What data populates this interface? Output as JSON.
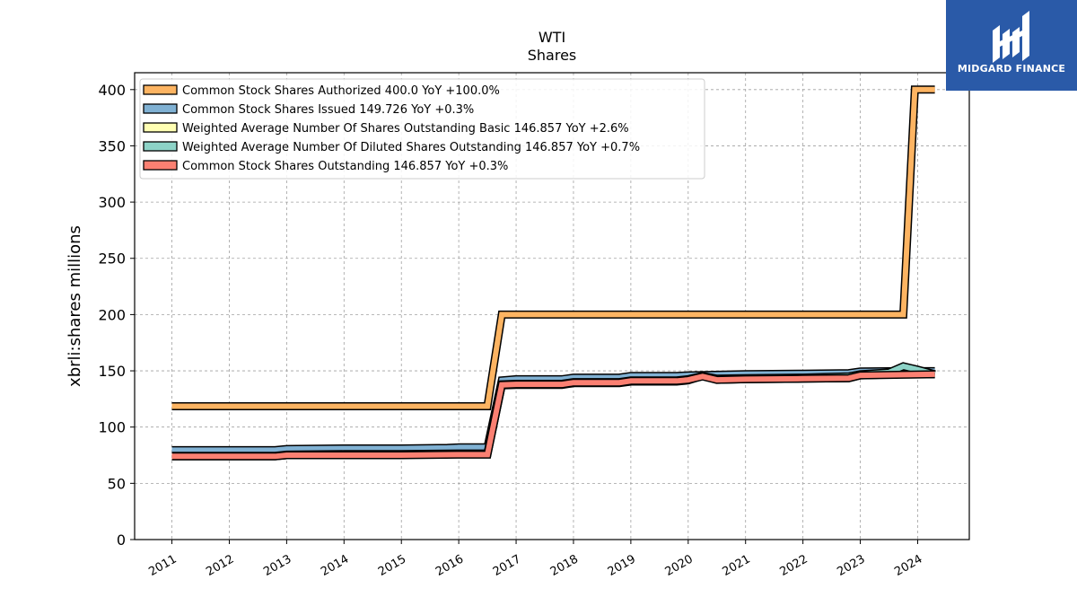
{
  "logo": {
    "text": "MIDGARD FINANCE",
    "bg": "#2a5aa8"
  },
  "chart_data": {
    "type": "line",
    "title": "WTI",
    "subtitle": "Shares",
    "ylabel": "xbrli:shares millions",
    "xlabel": "",
    "ylim": [
      0,
      415
    ],
    "xlim": [
      2010.35,
      2024.9
    ],
    "grid": true,
    "legend_position": "upper-left",
    "y_ticks": [
      0,
      50,
      100,
      150,
      200,
      250,
      300,
      350,
      400
    ],
    "x_ticks": [
      "2011",
      "2012",
      "2013",
      "2014",
      "2015",
      "2016",
      "2017",
      "2018",
      "2019",
      "2020",
      "2021",
      "2022",
      "2023",
      "2024"
    ],
    "series": [
      {
        "name": "Common Stock Shares Authorized",
        "legend": "Common Stock Shares Authorized  400.0 YoY +100.0%",
        "color": "#fdb462",
        "x": [
          2011.0,
          2016.5,
          2016.75,
          2023.75,
          2023.95,
          2024.3
        ],
        "y": [
          118.5,
          118.5,
          200.0,
          200.0,
          400.0,
          400.0
        ]
      },
      {
        "name": "Common Stock Shares Issued",
        "legend": "Common Stock Shares Issued  149.726 YoY +0.3%",
        "color": "#80b1d3",
        "x": [
          2011.0,
          2012.0,
          2012.8,
          2013.0,
          2014.0,
          2015.0,
          2015.8,
          2016.0,
          2016.5,
          2016.75,
          2017.0,
          2017.8,
          2018.0,
          2018.8,
          2019.0,
          2019.8,
          2020.0,
          2021.0,
          2022.0,
          2022.8,
          2023.0,
          2023.75,
          2024.3
        ],
        "y": [
          79.5,
          79.5,
          79.5,
          80.5,
          81.0,
          81.0,
          81.5,
          82.0,
          82.0,
          141.5,
          142.5,
          142.5,
          144.0,
          144.0,
          145.5,
          145.5,
          146.0,
          147.0,
          147.5,
          148.0,
          149.5,
          149.7,
          149.7
        ]
      },
      {
        "name": "Weighted Average Number Of Shares Outstanding Basic",
        "legend": "Weighted Average Number Of Shares Outstanding Basic  146.857 YoY +2.6%",
        "color": "#ffffb3",
        "x": [
          2011.0,
          2012.0,
          2012.8,
          2013.0,
          2014.0,
          2015.0,
          2016.0,
          2016.5,
          2016.75,
          2017.0,
          2017.8,
          2018.0,
          2018.8,
          2019.0,
          2019.8,
          2020.0,
          2020.25,
          2020.5,
          2021.0,
          2022.0,
          2022.8,
          2023.0,
          2023.75,
          2024.3
        ],
        "y": [
          74.0,
          74.0,
          74.0,
          75.0,
          75.5,
          75.5,
          76.0,
          76.0,
          137.0,
          137.5,
          137.5,
          139.0,
          139.0,
          140.5,
          140.5,
          141.5,
          145.5,
          142.0,
          142.5,
          143.0,
          143.5,
          146.0,
          147.0,
          146.9
        ]
      },
      {
        "name": "Weighted Average Number Of Diluted Shares Outstanding",
        "legend": "Weighted Average Number Of Diluted Shares Outstanding  146.857 YoY +0.7%",
        "color": "#8dd3c7",
        "x": [
          2011.0,
          2012.0,
          2012.8,
          2013.0,
          2014.0,
          2015.0,
          2016.0,
          2016.5,
          2016.75,
          2017.0,
          2017.8,
          2018.0,
          2018.8,
          2019.0,
          2019.8,
          2020.0,
          2020.25,
          2020.5,
          2021.0,
          2022.0,
          2022.8,
          2023.0,
          2023.5,
          2023.75,
          2024.0,
          2024.3
        ],
        "y": [
          74.5,
          74.5,
          74.5,
          75.5,
          76.0,
          76.0,
          76.5,
          76.5,
          138.0,
          138.5,
          138.5,
          140.0,
          140.0,
          141.5,
          141.5,
          142.5,
          145.5,
          143.0,
          143.5,
          144.0,
          145.0,
          147.0,
          148.5,
          154.0,
          151.0,
          146.9
        ]
      },
      {
        "name": "Common Stock Shares Outstanding",
        "legend": "Common Stock Shares Outstanding  146.857 YoY +0.3%",
        "color": "#fb8072",
        "x": [
          2011.0,
          2012.0,
          2012.8,
          2013.0,
          2014.0,
          2015.0,
          2016.0,
          2016.5,
          2016.75,
          2017.0,
          2017.8,
          2018.0,
          2018.8,
          2019.0,
          2019.8,
          2020.0,
          2020.25,
          2020.5,
          2021.0,
          2022.0,
          2022.8,
          2023.0,
          2023.75,
          2024.3
        ],
        "y": [
          74.0,
          74.0,
          74.0,
          75.0,
          75.0,
          75.0,
          75.5,
          75.5,
          137.5,
          138.0,
          138.0,
          139.5,
          139.5,
          141.0,
          141.0,
          142.0,
          145.0,
          142.0,
          142.5,
          143.0,
          143.5,
          146.0,
          146.5,
          146.9
        ]
      }
    ]
  }
}
